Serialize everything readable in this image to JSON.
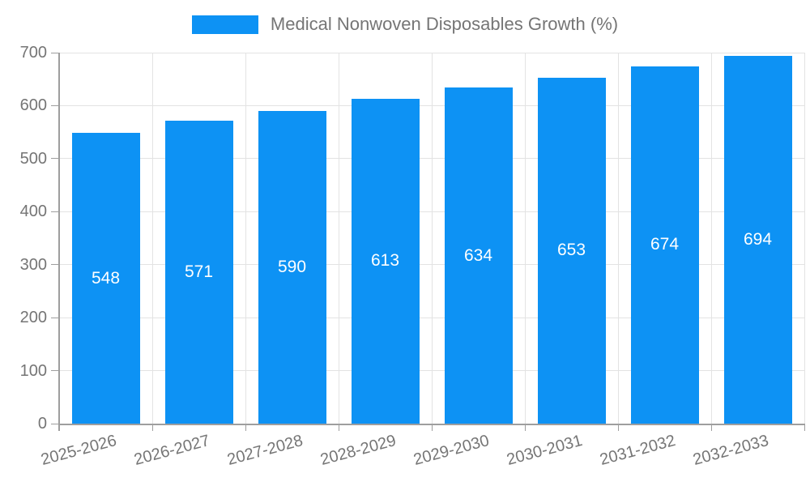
{
  "chart_data": {
    "type": "bar",
    "title": "Medical Nonwoven Disposables Growth (%)",
    "categories": [
      "2025-2026",
      "2026-2027",
      "2027-2028",
      "2028-2029",
      "2029-2030",
      "2030-2031",
      "2031-2032",
      "2032-2033"
    ],
    "values": [
      548,
      571,
      590,
      613,
      634,
      653,
      674,
      694
    ],
    "ylim": [
      0,
      700
    ],
    "yticks": [
      0,
      100,
      200,
      300,
      400,
      500,
      600,
      700
    ],
    "xlabel": "",
    "ylabel": "",
    "legend_entries": [
      "Medical Nonwoven Disposables Growth (%)"
    ],
    "legend_position": "top-center",
    "grid": true,
    "value_labels": "inside-center",
    "colors": {
      "bar": "#0d92f4",
      "value_label": "#ffffff",
      "axis": "#9e9e9e",
      "gridline": "#e3e3e3",
      "tick_text": "#757575",
      "legend_text": "#757575",
      "background": "#ffffff"
    }
  },
  "legend": {
    "label": "Medical Nonwoven Disposables Growth (%)"
  }
}
